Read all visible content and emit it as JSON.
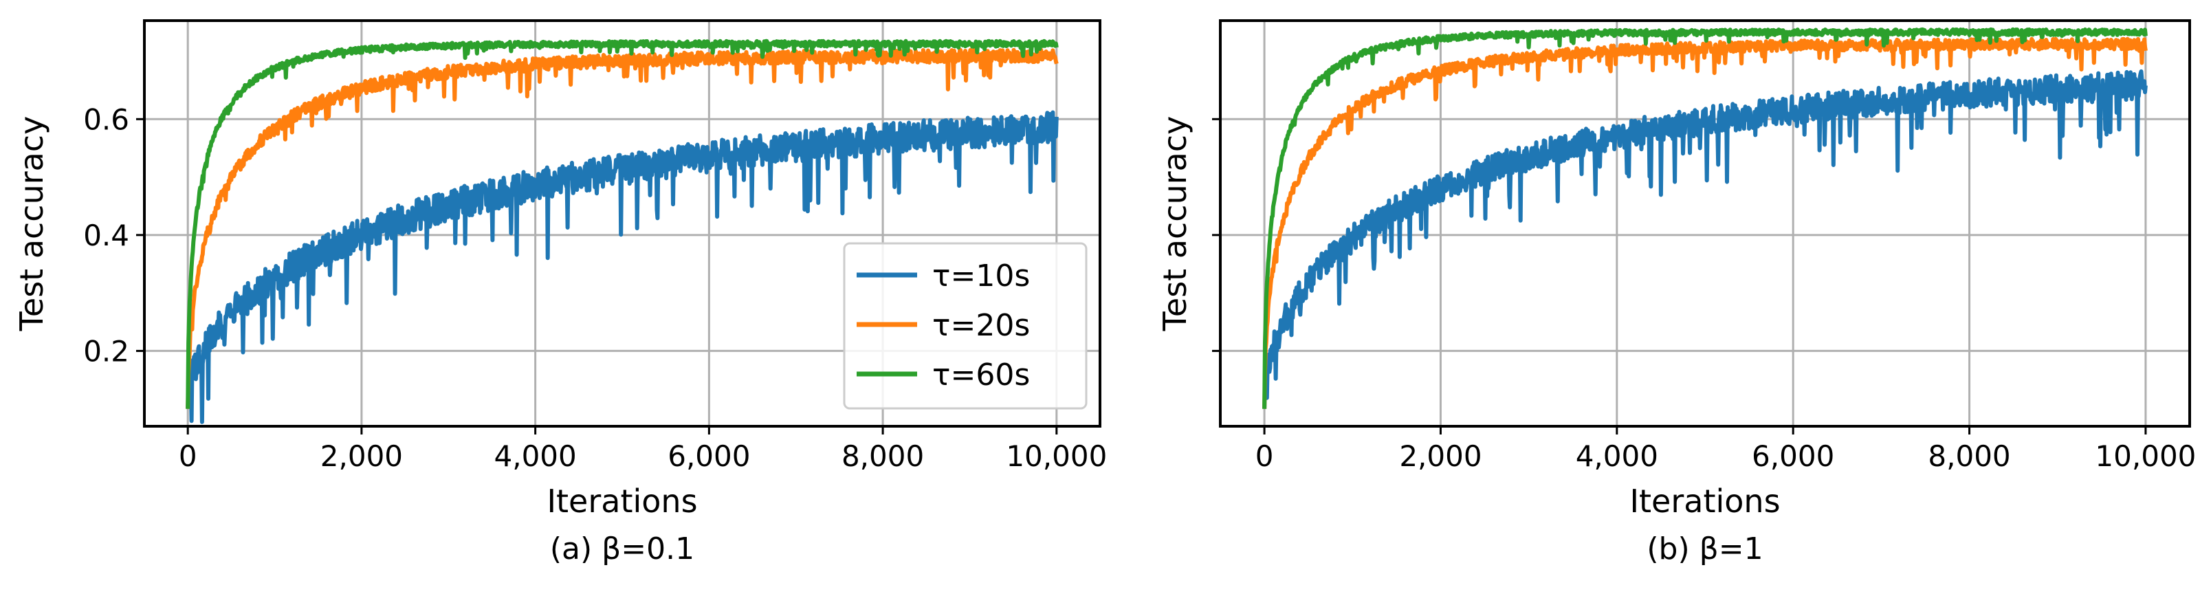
{
  "chart_data": [
    {
      "type": "line",
      "caption": "(a) β=0.1",
      "xlabel": "Iterations",
      "ylabel": "Test accuracy",
      "xlim": [
        -500,
        10500
      ],
      "ylim": [
        0.07,
        0.77
      ],
      "xticks": [
        0,
        2000,
        4000,
        6000,
        8000,
        10000
      ],
      "xtick_labels": [
        "0",
        "2,000",
        "4,000",
        "6,000",
        "8,000",
        "10,000"
      ],
      "yticks": [
        0.2,
        0.4,
        0.6
      ],
      "ytick_labels": [
        "0.2",
        "0.4",
        "0.6"
      ],
      "grid": true,
      "legend": {
        "location": "lower-right",
        "entries": [
          "τ=10s",
          "τ=20s",
          "τ=60s"
        ]
      },
      "series": [
        {
          "name": "τ=10s",
          "color": "#1f77b4",
          "start": 0.1,
          "plateau": 0.77,
          "k": 1.1,
          "noise": 0.045,
          "final": 0.64,
          "x": [
            0,
            500,
            1000,
            2000,
            3000,
            4000,
            6000,
            8000,
            10000
          ],
          "values": [
            0.1,
            0.17,
            0.27,
            0.39,
            0.47,
            0.53,
            0.59,
            0.63,
            0.65
          ]
        },
        {
          "name": "τ=20s",
          "color": "#ff7f0e",
          "start": 0.1,
          "plateau": 0.72,
          "k": 3.2,
          "noise": 0.018,
          "final": 0.71,
          "x": [
            0,
            500,
            1000,
            2000,
            3000,
            4000,
            6000,
            8000,
            10000
          ],
          "values": [
            0.1,
            0.39,
            0.47,
            0.56,
            0.62,
            0.66,
            0.69,
            0.71,
            0.71
          ]
        },
        {
          "name": "τ=60s",
          "color": "#2ca02c",
          "start": 0.1,
          "plateau": 0.735,
          "k": 5.5,
          "noise": 0.008,
          "final": 0.73,
          "x": [
            0,
            500,
            1000,
            2000,
            3000,
            4000,
            6000,
            8000,
            10000
          ],
          "values": [
            0.1,
            0.5,
            0.57,
            0.66,
            0.7,
            0.72,
            0.73,
            0.73,
            0.73
          ]
        }
      ]
    },
    {
      "type": "line",
      "caption": "(b) β=1",
      "xlabel": "Iterations",
      "ylabel": "Test accuracy",
      "xlim": [
        -500,
        10500
      ],
      "ylim": [
        0.07,
        0.77
      ],
      "xticks": [
        0,
        2000,
        4000,
        6000,
        8000,
        10000
      ],
      "xtick_labels": [
        "0",
        "2,000",
        "4,000",
        "6,000",
        "8,000",
        "10,000"
      ],
      "yticks": [
        0.2,
        0.4,
        0.6
      ],
      "ytick_labels": [
        "",
        "",
        ""
      ],
      "grid": true,
      "series": [
        {
          "name": "τ=10s",
          "color": "#1f77b4",
          "start": 0.1,
          "plateau": 0.78,
          "k": 1.4,
          "noise": 0.04,
          "final": 0.69,
          "x": [
            0,
            500,
            1000,
            2000,
            3000,
            4000,
            6000,
            8000,
            10000
          ],
          "values": [
            0.1,
            0.2,
            0.32,
            0.45,
            0.53,
            0.58,
            0.64,
            0.67,
            0.69
          ]
        },
        {
          "name": "τ=20s",
          "color": "#ff7f0e",
          "start": 0.1,
          "plateau": 0.74,
          "k": 3.5,
          "noise": 0.015,
          "final": 0.73,
          "x": [
            0,
            500,
            1000,
            2000,
            3000,
            4000,
            6000,
            8000,
            10000
          ],
          "values": [
            0.1,
            0.43,
            0.53,
            0.63,
            0.67,
            0.69,
            0.72,
            0.73,
            0.73
          ]
        },
        {
          "name": "τ=60s",
          "color": "#2ca02c",
          "start": 0.1,
          "plateau": 0.755,
          "k": 5.5,
          "noise": 0.008,
          "final": 0.75,
          "x": [
            0,
            500,
            1000,
            2000,
            3000,
            4000,
            6000,
            8000,
            10000
          ],
          "values": [
            0.1,
            0.51,
            0.6,
            0.68,
            0.72,
            0.73,
            0.74,
            0.75,
            0.75
          ]
        }
      ]
    }
  ]
}
